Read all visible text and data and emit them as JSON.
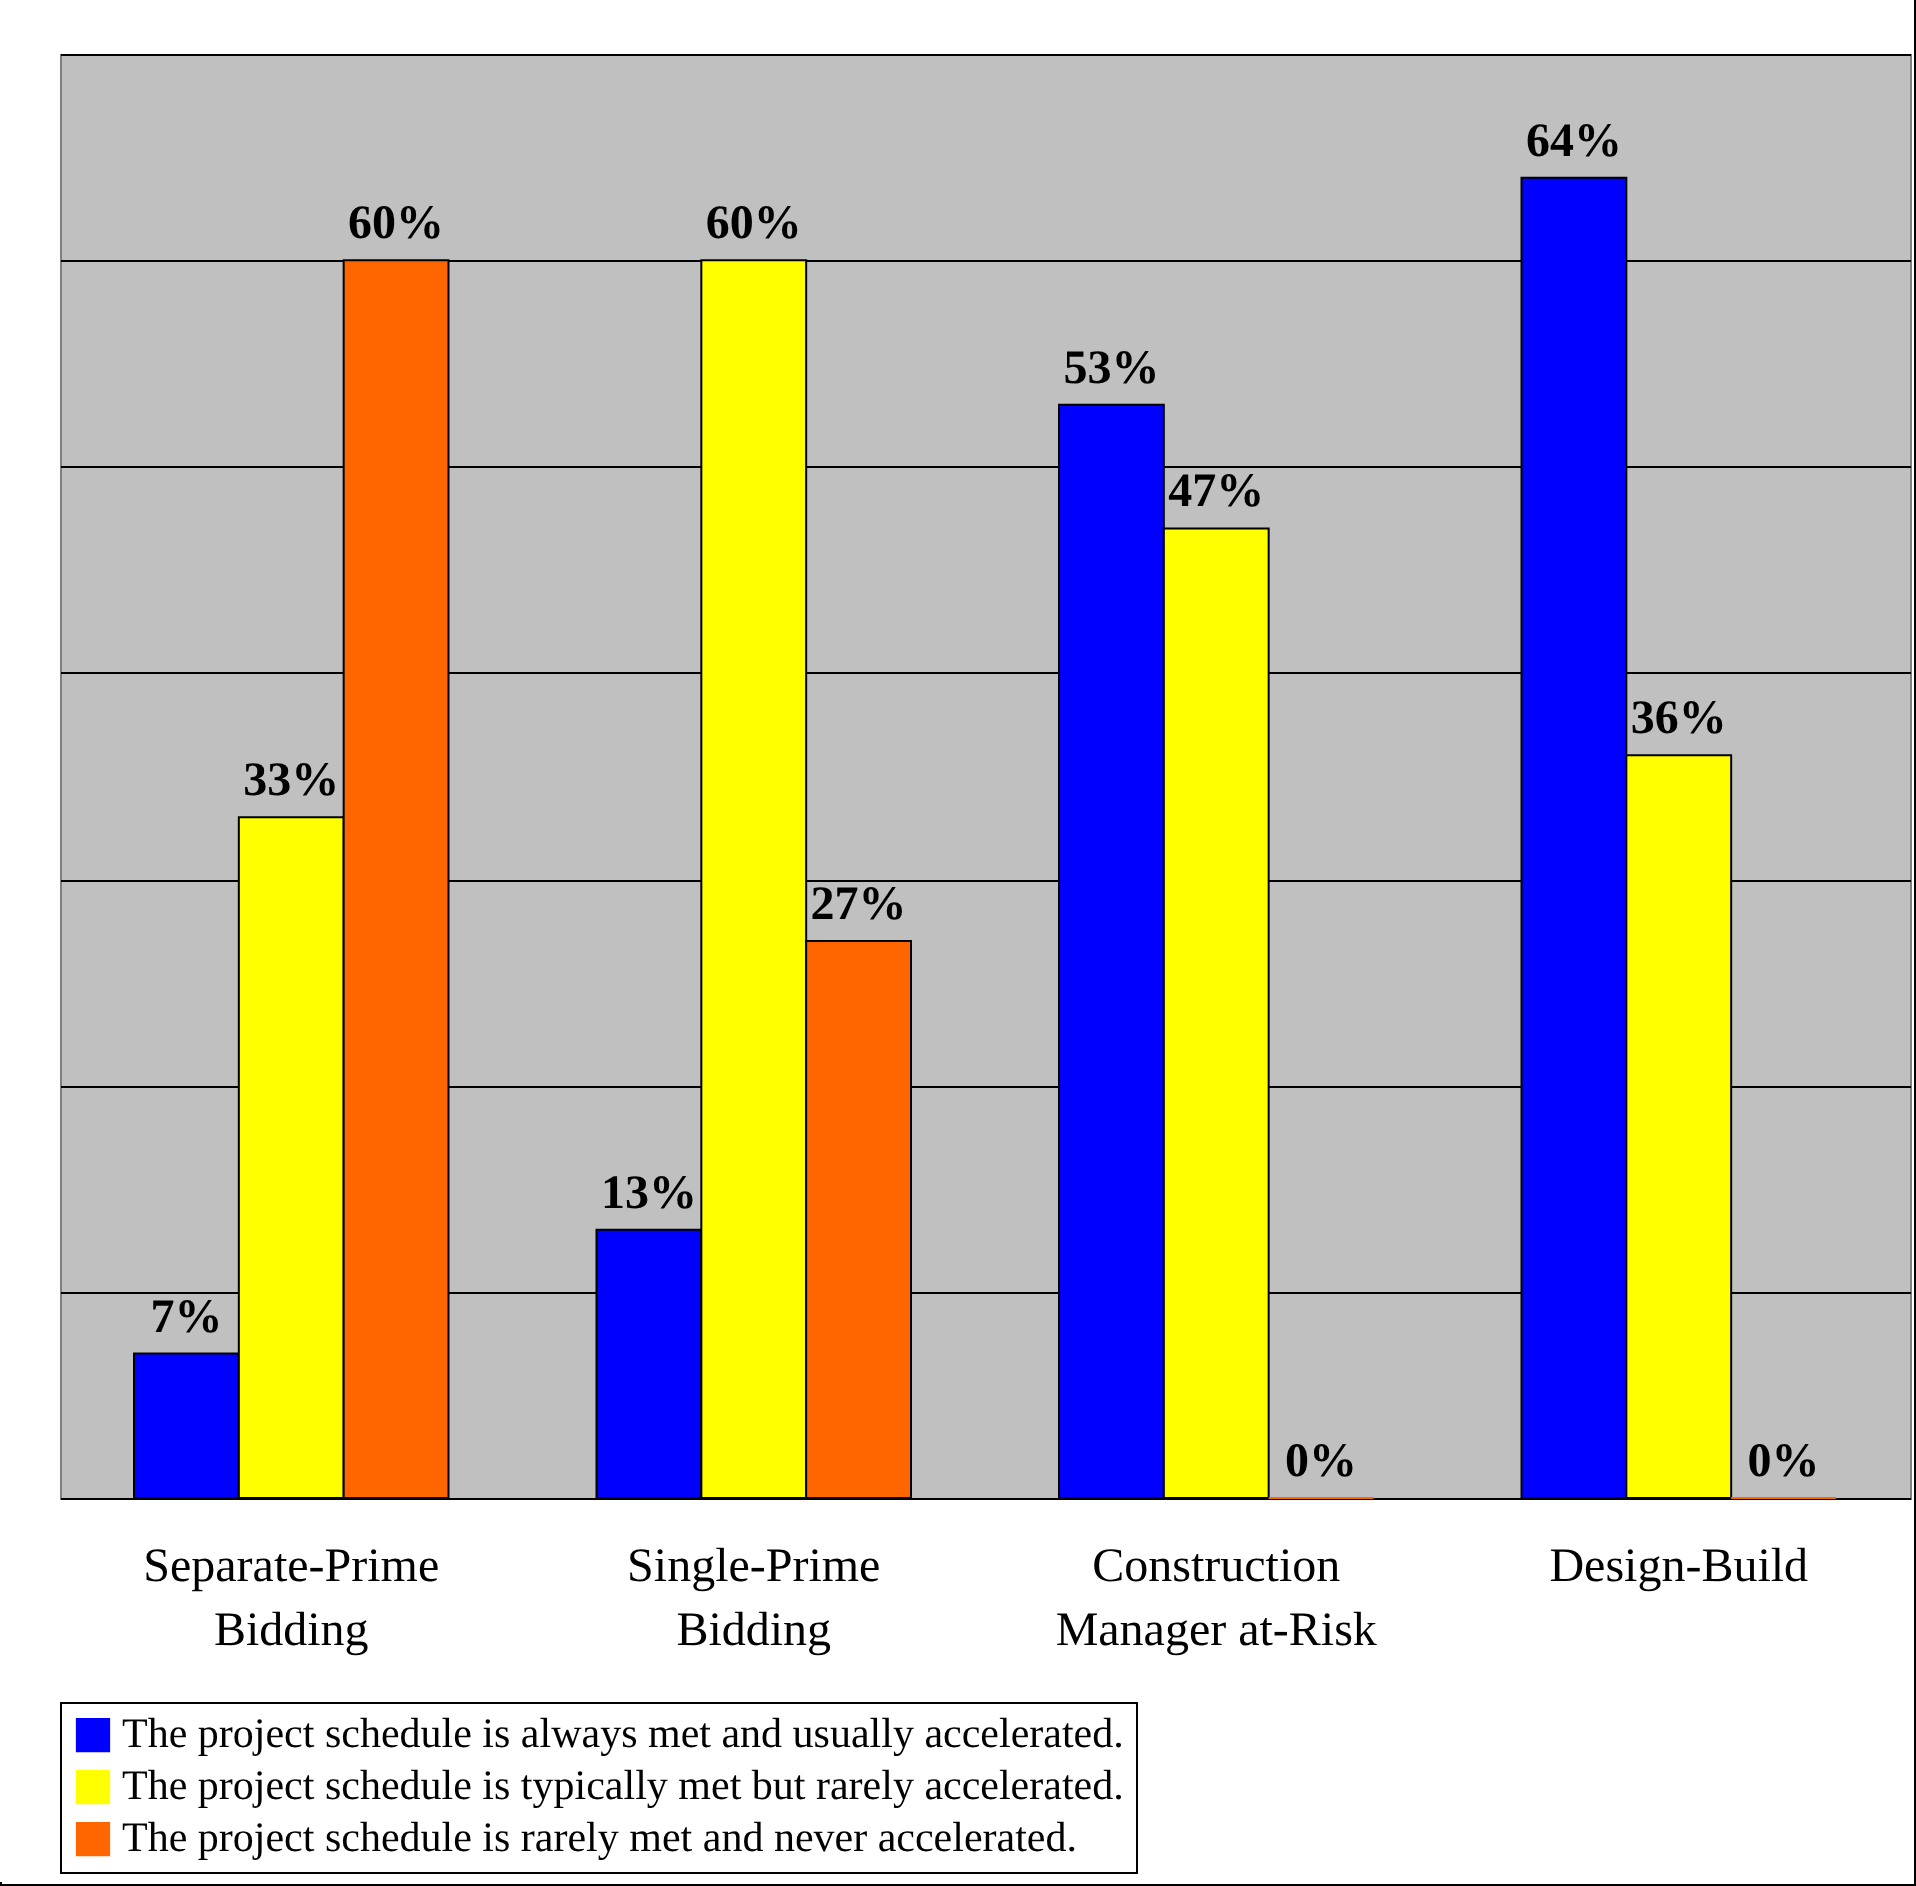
{
  "chart_data": {
    "type": "bar",
    "categories": [
      "Separate-Prime Bidding",
      "Single-Prime Bidding",
      "Construction Manager at-Risk",
      "Design-Build"
    ],
    "series": [
      {
        "name": "The project schedule is always met and usually accelerated.",
        "color": "#0000ff",
        "values": [
          7,
          13,
          53,
          64
        ],
        "value_labels": [
          "7%",
          "13%",
          "53%",
          "64%"
        ]
      },
      {
        "name": "The project schedule is typically met but rarely accelerated.",
        "color": "#ffff00",
        "values": [
          33,
          60,
          47,
          36
        ],
        "value_labels": [
          "33%",
          "60%",
          "47%",
          "36%"
        ]
      },
      {
        "name": "The project schedule is rarely met and never accelerated.",
        "color": "#ff6600",
        "values": [
          60,
          27,
          0,
          0
        ],
        "value_labels": [
          "60%",
          "27%",
          "0%",
          "0%"
        ]
      }
    ],
    "ylim": [
      0,
      70
    ],
    "yticks": [
      {
        "value": 0,
        "label": null
      },
      {
        "value": 10,
        "label": null
      },
      {
        "value": 20,
        "label": null
      },
      {
        "value": 30,
        "label": null
      },
      {
        "value": 40,
        "label": null
      },
      {
        "value": 50,
        "label": null
      },
      {
        "value": 60,
        "label": null
      },
      {
        "value": 70,
        "label": null
      }
    ],
    "tick_labels": "x",
    "grid": "y",
    "legend": "bottom"
  }
}
